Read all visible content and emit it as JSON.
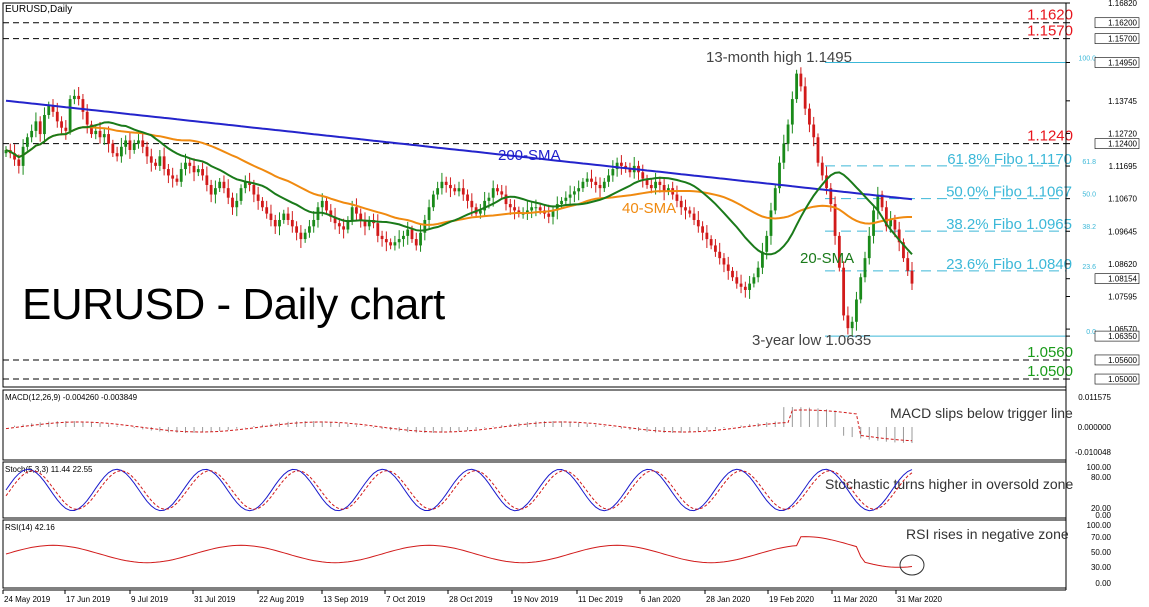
{
  "chart_title": "EURUSD - Daily chart",
  "symbol_label": "EURUSD,Daily",
  "chart_data": [
    {
      "type": "candlestick",
      "title": "EURUSD,Daily",
      "y_ticks": [
        "1.16820",
        "1.16200",
        "1.15700",
        "1.14950",
        "1.13745",
        "1.12720",
        "1.12400",
        "1.11695",
        "1.10670",
        "1.09645",
        "1.08620",
        "1.08154",
        "1.07595",
        "1.06570",
        "1.06350",
        "1.05600",
        "1.05000"
      ],
      "ylim": [
        1.0475,
        1.1682
      ],
      "x_ticks": [
        "24 May 2019",
        "17 Jun 2019",
        "9 Jul 2019",
        "31 Jul 2019",
        "22 Aug 2019",
        "13 Sep 2019",
        "7 Oct 2019",
        "28 Oct 2019",
        "19 Nov 2019",
        "11 Dec 2019",
        "6 Jan 2020",
        "28 Jan 2020",
        "19 Feb 2020",
        "11 Mar 2020",
        "31 Mar 2020"
      ],
      "last_price": "1.08154",
      "levels": [
        {
          "label": "1.1620",
          "value": 1.162,
          "color": "#e8141c"
        },
        {
          "label": "1.1570",
          "value": 1.157,
          "color": "#e8141c"
        },
        {
          "label": "1.1240",
          "value": 1.124,
          "color": "#e8141c"
        },
        {
          "label": "1.0560",
          "value": 1.056,
          "color": "#1a9a1a"
        },
        {
          "label": "1.0500",
          "value": 1.05,
          "color": "#1a9a1a"
        }
      ],
      "fibonacci": [
        {
          "label": "61.8% Fibo 1.1170",
          "ratio": "61.8",
          "value": 1.117
        },
        {
          "label": "50.0% Fibo 1.1067",
          "ratio": "50.0",
          "value": 1.1067
        },
        {
          "label": "38.2% Fibo 1.0965",
          "ratio": "38.2",
          "value": 1.0965
        },
        {
          "label": "23.6% Fibo 1.0840",
          "ratio": "23.6",
          "value": 1.084
        }
      ],
      "fibo_top": {
        "ratio": "100.0",
        "value": 1.1495
      },
      "fibo_bottom": {
        "ratio": "0.0",
        "value": 1.0635
      },
      "annotations": [
        {
          "text": "13-month high 1.1495"
        },
        {
          "text": "3-year low 1.0635"
        },
        {
          "text": "200-SMA",
          "color": "#2020cc"
        },
        {
          "text": "40-SMA",
          "color": "#f08a10"
        },
        {
          "text": "20-SMA",
          "color": "#1a7a1a"
        }
      ],
      "series_colors": {
        "candle_up": "#1a8a1a",
        "candle_down": "#d11a1a",
        "sma200": "#2424cc",
        "sma40": "#f08a10",
        "sma20": "#1a7a1a",
        "fibo": "#3cb8d8"
      },
      "close_series": [
        1.122,
        1.121,
        1.119,
        1.117,
        1.123,
        1.126,
        1.128,
        1.131,
        1.127,
        1.133,
        1.136,
        1.134,
        1.131,
        1.129,
        1.128,
        1.138,
        1.139,
        1.138,
        1.134,
        1.13,
        1.127,
        1.128,
        1.126,
        1.127,
        1.124,
        1.121,
        1.12,
        1.123,
        1.125,
        1.122,
        1.124,
        1.125,
        1.123,
        1.12,
        1.118,
        1.117,
        1.12,
        1.116,
        1.114,
        1.113,
        1.112,
        1.116,
        1.118,
        1.117,
        1.115,
        1.116,
        1.114,
        1.111,
        1.108,
        1.11,
        1.112,
        1.11,
        1.107,
        1.104,
        1.106,
        1.11,
        1.112,
        1.111,
        1.108,
        1.106,
        1.104,
        1.102,
        1.1,
        1.098,
        1.1,
        1.102,
        1.1,
        1.098,
        1.096,
        1.094,
        1.096,
        1.098,
        1.1,
        1.104,
        1.106,
        1.103,
        1.101,
        1.099,
        1.098,
        1.097,
        1.1,
        1.104,
        1.102,
        1.1,
        1.098,
        1.1,
        1.099,
        1.095,
        1.094,
        1.093,
        1.092,
        1.093,
        1.094,
        1.095,
        1.097,
        1.094,
        1.092,
        1.096,
        1.1,
        1.104,
        1.108,
        1.11,
        1.112,
        1.111,
        1.11,
        1.109,
        1.11,
        1.108,
        1.106,
        1.104,
        1.102,
        1.103,
        1.106,
        1.107,
        1.11,
        1.109,
        1.108,
        1.105,
        1.104,
        1.103,
        1.102,
        1.102,
        1.103,
        1.104,
        1.104,
        1.103,
        1.102,
        1.101,
        1.103,
        1.105,
        1.106,
        1.107,
        1.108,
        1.109,
        1.11,
        1.112,
        1.113,
        1.112,
        1.111,
        1.11,
        1.112,
        1.114,
        1.116,
        1.118,
        1.117,
        1.116,
        1.115,
        1.117,
        1.115,
        1.113,
        1.111,
        1.11,
        1.112,
        1.111,
        1.109,
        1.11,
        1.108,
        1.106,
        1.104,
        1.103,
        1.102,
        1.1,
        1.098,
        1.096,
        1.094,
        1.092,
        1.09,
        1.088,
        1.086,
        1.084,
        1.082,
        1.08,
        1.079,
        1.078,
        1.08,
        1.082,
        1.085,
        1.09,
        1.095,
        1.103,
        1.11,
        1.118,
        1.124,
        1.13,
        1.138,
        1.146,
        1.142,
        1.135,
        1.13,
        1.126,
        1.118,
        1.114,
        1.11,
        1.105,
        1.095,
        1.085,
        1.07,
        1.066,
        1.068,
        1.075,
        1.082,
        1.088,
        1.095,
        1.103,
        1.108,
        1.104,
        1.098,
        1.1,
        1.097,
        1.093,
        1.088,
        1.084,
        1.08
      ],
      "indicators": [
        {
          "name": "MACD(12,26,9) -0.004260 -0.003849",
          "ticks": [
            "0.011575",
            "0.000000",
            "-0.010048"
          ],
          "annotation": "MACD slips below trigger line"
        },
        {
          "name": "Stoch(5,3,3) 11.44 22.55",
          "ticks": [
            "100.00",
            "80.00",
            "20.00",
            "0.00"
          ],
          "annotation": "Stochastic turns higher in oversold zone"
        },
        {
          "name": "RSI(14) 42.16",
          "ticks": [
            "100.00",
            "70.00",
            "50.00",
            "30.00",
            "0.00"
          ],
          "annotation": "RSI rises in negative zone"
        }
      ]
    }
  ]
}
